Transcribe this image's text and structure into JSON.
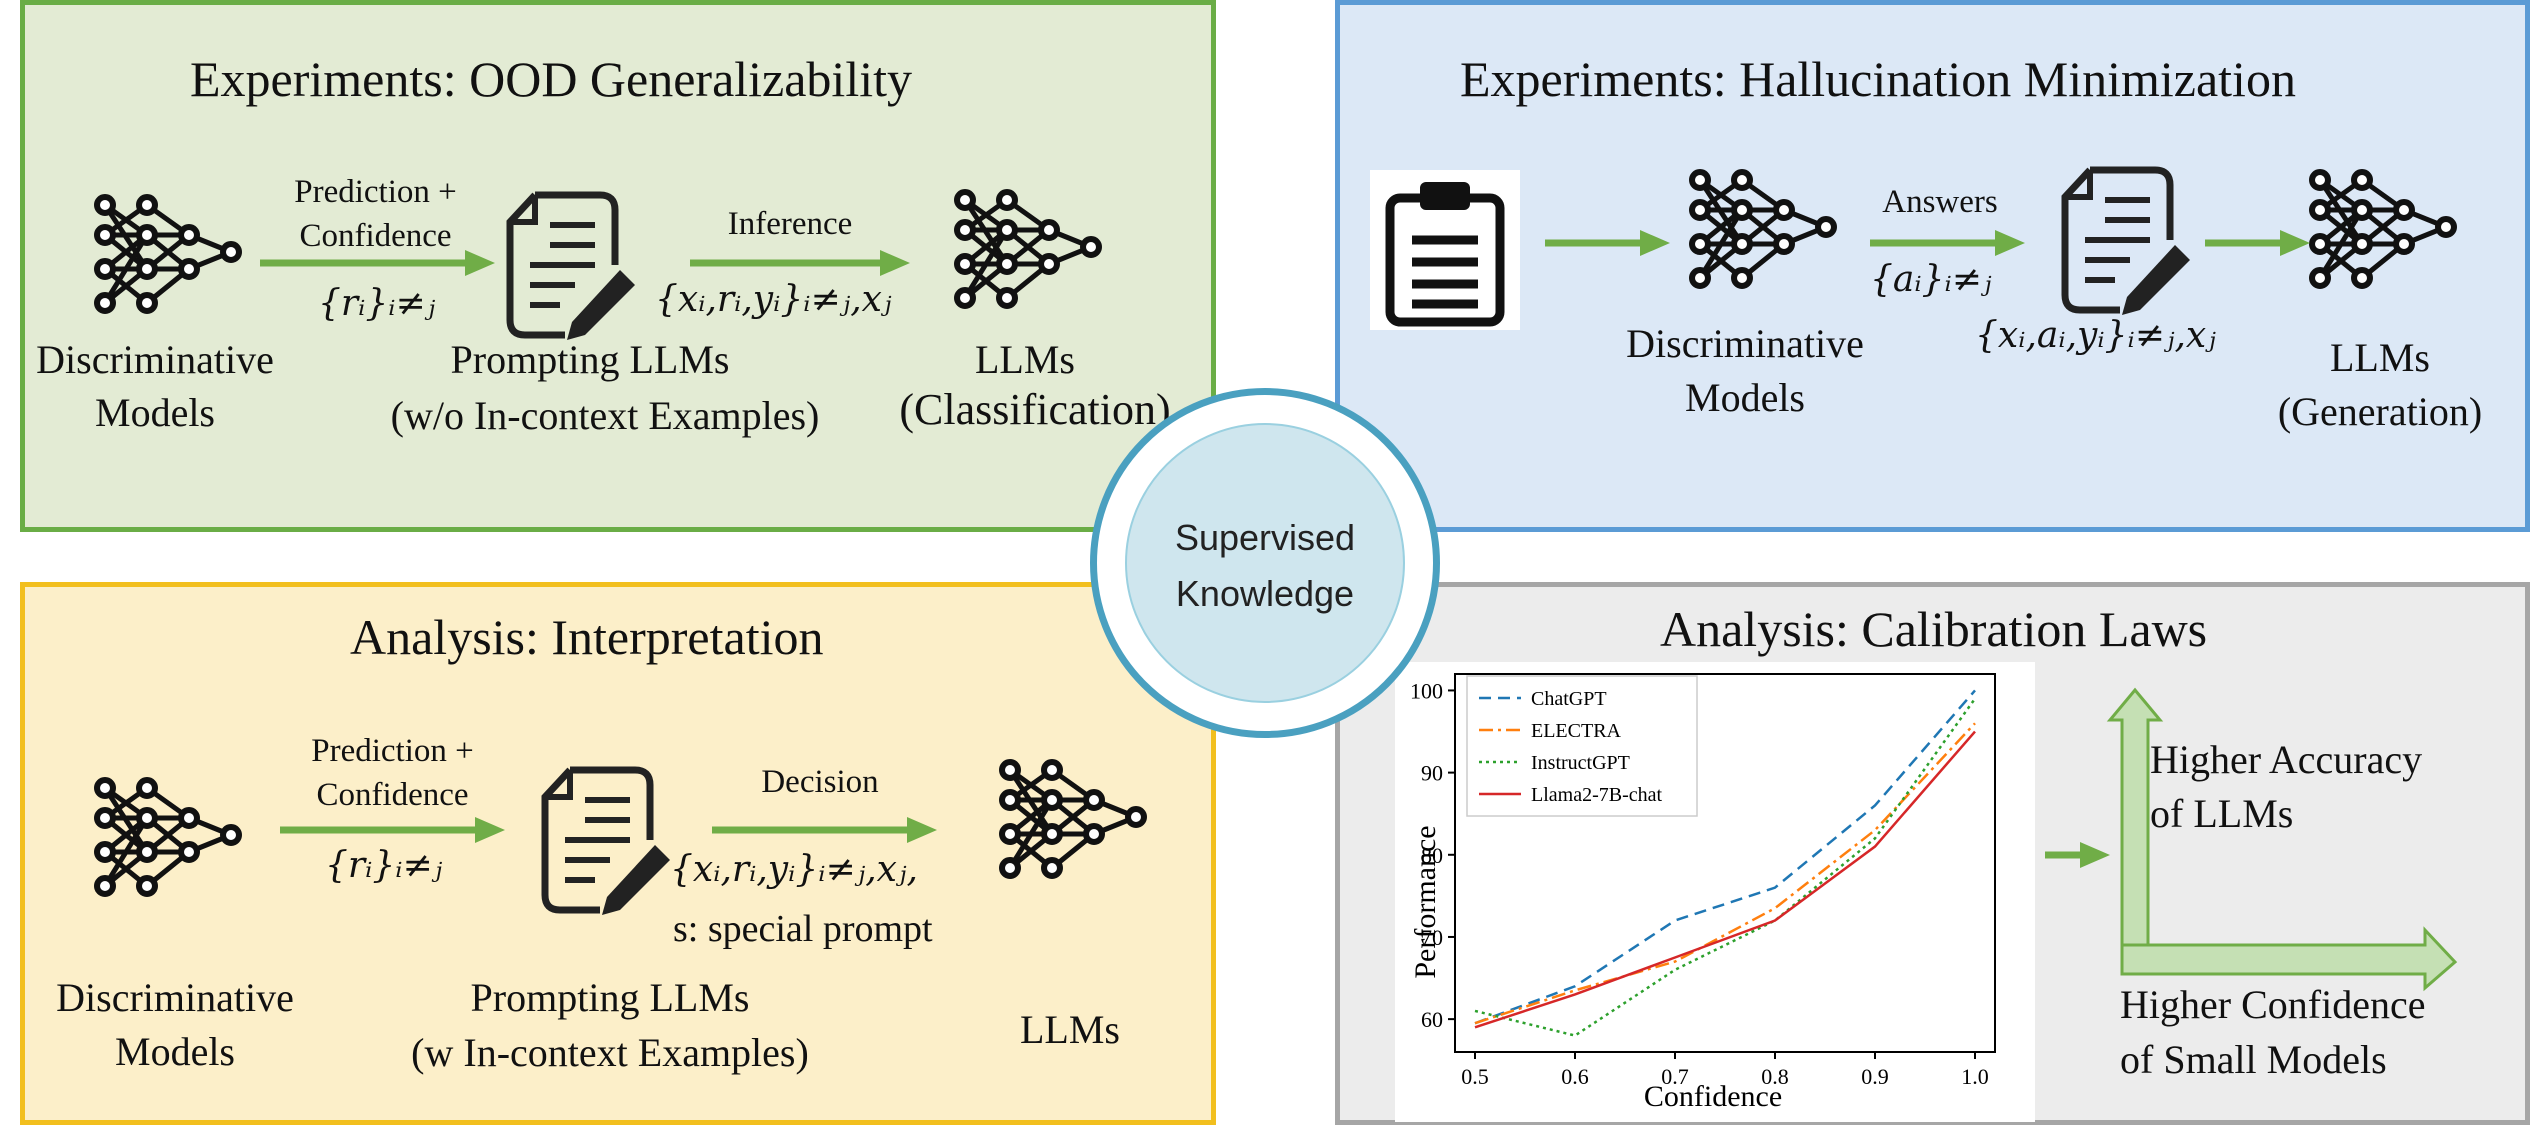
{
  "panels": {
    "ood": {
      "title": "Experiments: OOD Generalizability",
      "arrow1_label_line1": "Prediction +",
      "arrow1_label_line2": "Confidence",
      "arrow1_math": "{rᵢ}ᵢ≠ⱼ",
      "arrow2_label": "Inference",
      "arrow2_math": "{xᵢ,rᵢ,yᵢ}ᵢ≠ⱼ,xⱼ",
      "node1_line1": "Discriminative",
      "node1_line2": "Models",
      "node2_line1": "Prompting  LLMs",
      "node2_line2": "(w/o In-context  Examples)",
      "node3_line1": "LLMs",
      "node3_line2": "(Classification)"
    },
    "hallucination": {
      "title": "Experiments: Hallucination Minimization",
      "arrow_label": "Answers",
      "arrow_math": "{aᵢ}ᵢ≠ⱼ",
      "prompt_math": "{xᵢ,aᵢ,yᵢ}ᵢ≠ⱼ,xⱼ",
      "node1_line1": "Discriminative",
      "node1_line2": "Models",
      "node3_line1": "LLMs",
      "node3_line2": "(Generation)"
    },
    "interpretation": {
      "title": "Analysis: Interpretation",
      "arrow1_label_line1": "Prediction +",
      "arrow1_label_line2": "Confidence",
      "arrow1_math": "{rᵢ}ᵢ≠ⱼ",
      "arrow2_label": "Decision",
      "arrow2_math": "{xᵢ,rᵢ,yᵢ}ᵢ≠ⱼ,xⱼ,",
      "special": "s: special prompt",
      "node1_line1": "Discriminative",
      "node1_line2": "Models",
      "node2_line1": "Prompting  LLMs",
      "node2_line2": "(w In-context  Examples)",
      "node3_line1": "LLMs"
    },
    "calibration": {
      "title": "Analysis: Calibration Laws",
      "axis_up_line1": "Higher Accuracy",
      "axis_up_line2": "of LLMs",
      "axis_right_line1": "Higher Confidence",
      "axis_right_line2": "of Small Models"
    }
  },
  "hub": {
    "line1": "Supervised",
    "line2": "Knowledge"
  },
  "colors": {
    "arrow_green": "#70ad47",
    "ood_fill": "#e3ebd4",
    "ood_border": "#6aad46",
    "hal_fill": "#dce8f6",
    "hal_border": "#5b9bd5",
    "int_fill": "#fcefc9",
    "int_border": "#f2bf1e",
    "cal_fill": "#ececec",
    "cal_border": "#a6a6a6",
    "hub_ring": "#4aa0c0"
  },
  "icons": [
    "neural-network-icon",
    "document-pen-icon",
    "clipboard-icon"
  ],
  "chart_data": {
    "type": "line",
    "xlabel": "Confidence",
    "ylabel": "Performance",
    "x": [
      0.5,
      0.6,
      0.7,
      0.8,
      0.9,
      1.0
    ],
    "xlim": [
      0.48,
      1.02
    ],
    "ylim": [
      56,
      102
    ],
    "xticks": [
      "0.5",
      "0.6",
      "0.7",
      "0.8",
      "0.9",
      "1.0"
    ],
    "yticks": [
      60,
      70,
      80,
      90,
      100
    ],
    "legend_position": "top-left",
    "grid": false,
    "series": [
      {
        "name": "ChatGPT",
        "color": "#1f77b4",
        "dash": "12,7",
        "values": [
          59.5,
          64,
          72,
          76,
          86,
          100
        ]
      },
      {
        "name": "ELECTRA",
        "color": "#ff7f0e",
        "dash": "14,5,3,5",
        "values": [
          59.5,
          63.5,
          67,
          73.5,
          83,
          96
        ]
      },
      {
        "name": "InstructGPT",
        "color": "#2ca02c",
        "dash": "3,4",
        "values": [
          61,
          58,
          66,
          72,
          82,
          99
        ]
      },
      {
        "name": "Llama2-7B-chat",
        "color": "#d62728",
        "dash": "",
        "values": [
          59,
          63,
          67.5,
          72,
          81,
          95
        ]
      }
    ]
  }
}
